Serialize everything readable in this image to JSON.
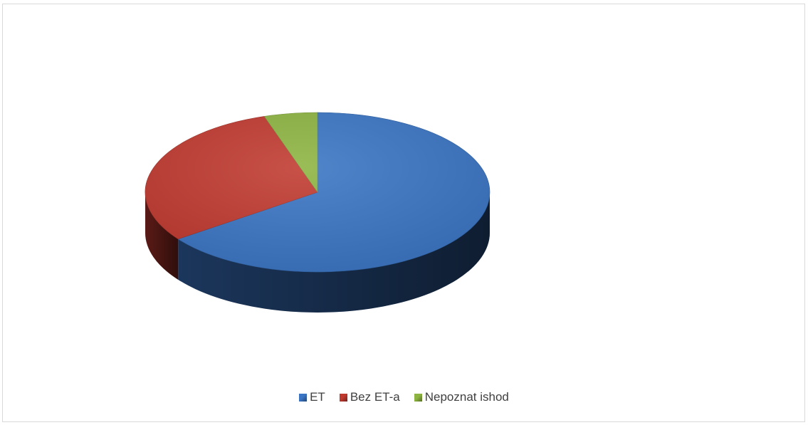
{
  "chart_data": {
    "type": "pie",
    "style": "3d",
    "title": "",
    "start_angle_deg": 0,
    "direction": "clockwise",
    "legend_position": "bottom",
    "slices": [
      {
        "label": "ET",
        "value": 65,
        "color": "#3a75c4"
      },
      {
        "label": "Bez ET-a",
        "value": 30,
        "color": "#c0392f"
      },
      {
        "label": "Nepoznat ishod",
        "value": 5,
        "color": "#8db441"
      }
    ]
  }
}
